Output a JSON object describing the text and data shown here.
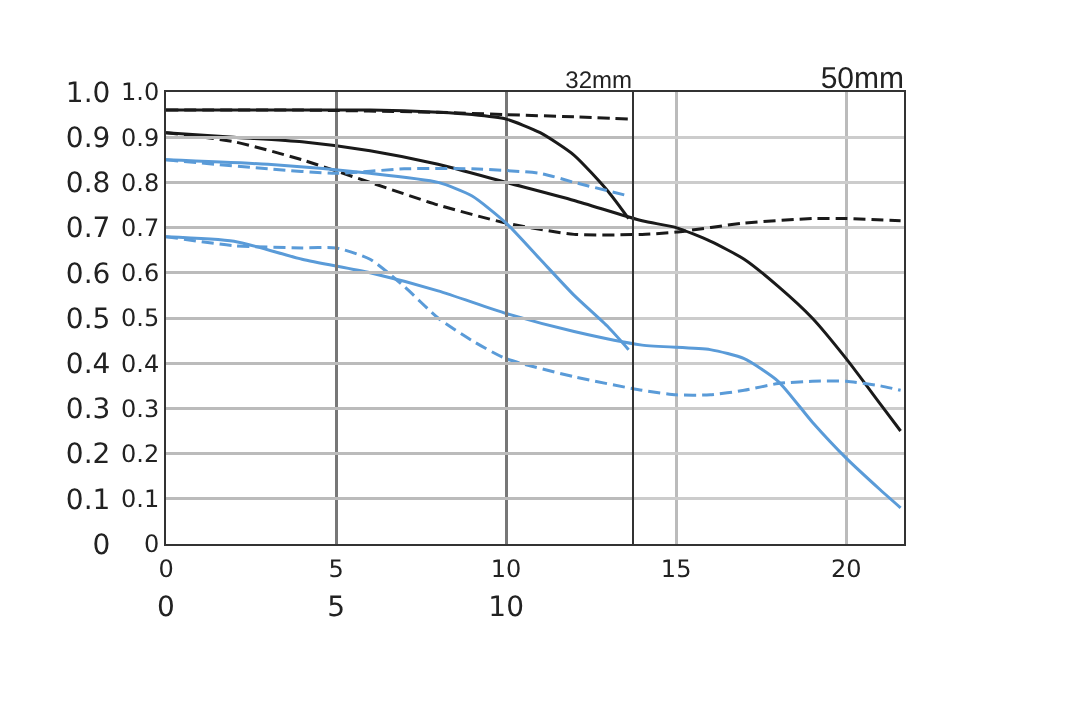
{
  "chart_data": [
    {
      "type": "line",
      "title": "32mm",
      "xlim": [
        0,
        13.7
      ],
      "xticks": [
        0,
        5,
        10
      ],
      "ylim": [
        0,
        1
      ],
      "yticks": [
        0,
        0.1,
        0.2,
        0.3,
        0.4,
        0.5,
        0.6,
        0.7,
        0.8,
        0.9,
        {
          "value": 1,
          "label": "1.0"
        }
      ],
      "grid": true,
      "series": [
        {
          "color": "#1a1a1a",
          "line_style": "solid",
          "x": [
            0,
            2,
            4,
            6,
            8,
            9,
            10,
            11,
            12,
            13,
            13.6
          ],
          "values": [
            0.96,
            0.96,
            0.96,
            0.96,
            0.955,
            0.95,
            0.94,
            0.91,
            0.86,
            0.78,
            0.72
          ]
        },
        {
          "color": "#1a1a1a",
          "line_style": "dashed",
          "x": [
            0,
            4,
            8,
            10,
            12,
            13.6
          ],
          "values": [
            0.96,
            0.96,
            0.955,
            0.95,
            0.945,
            0.94
          ]
        },
        {
          "color": "#5a9bd8",
          "line_style": "solid",
          "x": [
            0,
            3,
            6,
            8,
            9,
            10,
            11,
            12,
            13,
            13.6
          ],
          "values": [
            0.85,
            0.84,
            0.82,
            0.8,
            0.77,
            0.71,
            0.63,
            0.55,
            0.48,
            0.43
          ]
        },
        {
          "color": "#5a9bd8",
          "line_style": "dashed",
          "x": [
            0,
            3,
            5,
            7,
            9,
            11,
            12,
            13.6
          ],
          "values": [
            0.85,
            0.83,
            0.82,
            0.83,
            0.83,
            0.82,
            0.8,
            0.77
          ]
        }
      ]
    },
    {
      "type": "line",
      "title": "50mm",
      "xlim": [
        0,
        21.7
      ],
      "xticks": [
        0,
        5,
        10,
        15,
        20
      ],
      "ylim": [
        0,
        1
      ],
      "yticks": [
        0,
        0.1,
        0.2,
        0.3,
        0.4,
        0.5,
        0.6,
        0.7,
        0.8,
        0.9,
        {
          "value": 1,
          "label": "1.0"
        }
      ],
      "grid": true,
      "series": [
        {
          "color": "#1a1a1a",
          "line_style": "solid",
          "x": [
            0,
            2,
            4,
            6,
            8,
            10,
            12,
            14,
            15,
            16,
            17,
            18,
            19,
            20,
            21,
            21.6
          ],
          "values": [
            0.91,
            0.9,
            0.89,
            0.87,
            0.84,
            0.8,
            0.76,
            0.715,
            0.7,
            0.67,
            0.63,
            0.57,
            0.5,
            0.41,
            0.31,
            0.25
          ]
        },
        {
          "color": "#1a1a1a",
          "line_style": "dashed",
          "x": [
            0,
            2,
            4,
            6,
            8,
            10,
            12,
            14,
            15,
            17,
            19,
            20,
            21.6
          ],
          "values": [
            0.91,
            0.89,
            0.85,
            0.8,
            0.75,
            0.71,
            0.685,
            0.685,
            0.69,
            0.71,
            0.72,
            0.72,
            0.715
          ]
        },
        {
          "color": "#5a9bd8",
          "line_style": "solid",
          "x": [
            0,
            2,
            4,
            6,
            8,
            10,
            12,
            14,
            16,
            17,
            18,
            19,
            20,
            21,
            21.6
          ],
          "values": [
            0.68,
            0.67,
            0.63,
            0.6,
            0.56,
            0.51,
            0.47,
            0.44,
            0.43,
            0.41,
            0.36,
            0.27,
            0.19,
            0.12,
            0.08
          ]
        },
        {
          "color": "#5a9bd8",
          "line_style": "dashed",
          "x": [
            0,
            2,
            4,
            5,
            6,
            7,
            8,
            9,
            10,
            12,
            14,
            15,
            16,
            17,
            18,
            19,
            20,
            21,
            21.6
          ],
          "values": [
            0.68,
            0.66,
            0.655,
            0.655,
            0.63,
            0.57,
            0.5,
            0.45,
            0.41,
            0.37,
            0.34,
            0.33,
            0.33,
            0.34,
            0.355,
            0.36,
            0.36,
            0.35,
            0.34
          ]
        }
      ]
    }
  ]
}
